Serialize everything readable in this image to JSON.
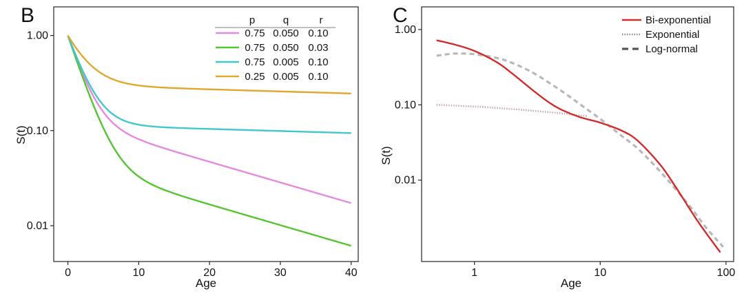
{
  "chart_data": [
    {
      "panel_label": "B",
      "type": "line",
      "xlabel": "Age",
      "ylabel": "S(t)",
      "xscale": "linear",
      "yscale": "log",
      "xlim": [
        -2,
        41
      ],
      "ylim": [
        0.0042,
        2.0
      ],
      "xticks": [
        0,
        10,
        20,
        30,
        40
      ],
      "xtick_labels": [
        "0",
        "10",
        "20",
        "30",
        "40"
      ],
      "yticks": [
        1.0,
        0.1,
        0.01
      ],
      "ytick_labels": [
        "1.00",
        "0.10",
        "0.01"
      ],
      "grid": false,
      "legend": {
        "position": "top-right",
        "headers": [
          "p",
          "q",
          "r"
        ],
        "rows": [
          [
            "0.75",
            "0.050",
            "0.10"
          ],
          [
            "0.75",
            "0.050",
            "0.03"
          ],
          [
            "0.75",
            "0.005",
            "0.10"
          ],
          [
            "0.25",
            "0.005",
            "0.10"
          ]
        ]
      },
      "series": [
        {
          "name": "p=0.75 q=0.050 r=0.10",
          "color": "#e589e0",
          "p": 0.75,
          "q": 0.05,
          "r": 0.1
        },
        {
          "name": "p=0.75 q=0.050 r=0.03",
          "color": "#55c431",
          "p": 0.75,
          "q": 0.05,
          "r": 0.03
        },
        {
          "name": "p=0.75 q=0.005 r=0.10",
          "color": "#3fc7cf",
          "p": 0.75,
          "q": 0.005,
          "r": 0.1
        },
        {
          "name": "p=0.25 q=0.005 r=0.10",
          "color": "#e0a72c",
          "p": 0.25,
          "q": 0.005,
          "r": 0.1
        }
      ],
      "x_range": [
        0,
        40
      ]
    },
    {
      "panel_label": "C",
      "type": "line",
      "xlabel": "Age",
      "ylabel": "S(t)",
      "xscale": "log",
      "yscale": "log",
      "xlim": [
        0.38,
        115
      ],
      "ylim": [
        0.00083,
        2.0
      ],
      "xticks": [
        1,
        10,
        100
      ],
      "xtick_labels": [
        "1",
        "10",
        "100"
      ],
      "yticks": [
        1.0,
        0.1,
        0.01
      ],
      "ytick_labels": [
        "1.00",
        "0.10",
        "0.01"
      ],
      "grid": false,
      "legend": {
        "position": "top-right",
        "entries": [
          "Bi-exponential",
          "Exponential",
          "Log-normal"
        ]
      },
      "series": [
        {
          "name": "Bi-exponential",
          "color": "#d12b2b",
          "style": "solid",
          "x": [
            0.5,
            0.7,
            1.0,
            1.5,
            2.0,
            3.0,
            4.0,
            5.0,
            7.0,
            10.0,
            15.0,
            20.0,
            30.0,
            40.0,
            60.0,
            90.0
          ],
          "y": [
            0.72,
            0.63,
            0.52,
            0.37,
            0.26,
            0.15,
            0.105,
            0.085,
            0.068,
            0.058,
            0.045,
            0.033,
            0.016,
            0.008,
            0.0028,
            0.0011
          ]
        },
        {
          "name": "Exponential",
          "color": "#c4a9a9",
          "style": "dotted",
          "x": [
            0.5,
            1.0,
            2.0,
            3.0,
            5.0,
            7.0,
            8.0
          ],
          "y": [
            0.1,
            0.095,
            0.088,
            0.083,
            0.077,
            0.072,
            0.071
          ]
        },
        {
          "name": "Log-normal",
          "color": "#b8b8b8",
          "style": "dashed",
          "x": [
            0.5,
            0.7,
            1.0,
            1.5,
            2.0,
            3.0,
            5.0,
            7.0,
            10.0,
            15.0,
            20.0,
            30.0,
            50.0,
            70.0,
            95.0
          ],
          "y": [
            0.45,
            0.48,
            0.47,
            0.42,
            0.36,
            0.26,
            0.15,
            0.1,
            0.065,
            0.038,
            0.026,
            0.013,
            0.0048,
            0.0023,
            0.0013
          ]
        }
      ]
    }
  ]
}
